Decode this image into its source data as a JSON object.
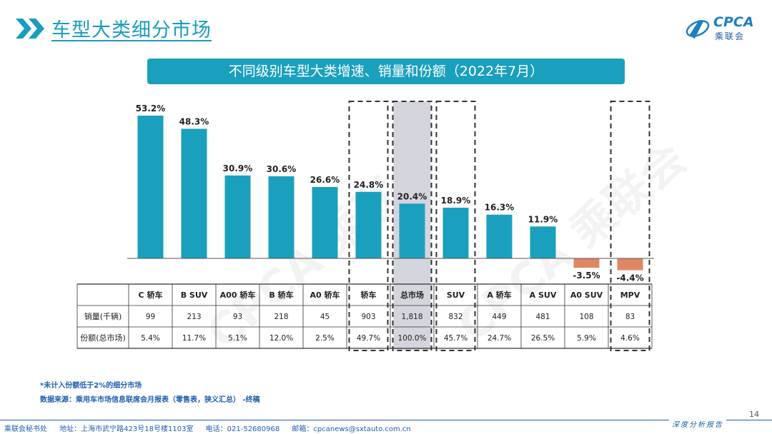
{
  "header": {
    "title": "车型大类细分市场",
    "logo_text": "CPCA",
    "logo_sub": "乘联会"
  },
  "banner": {
    "text": "不同级别车型大类增速、销量和份额（2022年7月）"
  },
  "watermark": "CPCA 乘联会",
  "chart_data": {
    "type": "bar",
    "title": "不同级别车型大类增速、销量和份额（2022年7月）",
    "categories": [
      "C 轿车",
      "B SUV",
      "A00 轿车",
      "B 轿车",
      "A0 轿车",
      "轿车",
      "总市场",
      "SUV",
      "A 轿车",
      "A SUV",
      "A0 SUV",
      "MPV"
    ],
    "values": [
      53.2,
      48.3,
      30.9,
      30.6,
      26.6,
      24.8,
      20.4,
      18.9,
      16.3,
      11.9,
      -3.5,
      -4.4
    ],
    "value_labels": [
      "53.2%",
      "48.3%",
      "30.9%",
      "30.6%",
      "26.6%",
      "24.8%",
      "20.4%",
      "18.9%",
      "16.3%",
      "11.9%",
      "-3.5%",
      "-4.4%"
    ],
    "unit": "%",
    "ylim": [
      -5,
      55
    ],
    "highlight_dashed": [
      "轿车",
      "总市场",
      "SUV",
      "MPV"
    ],
    "highlight_shaded": [
      "总市场"
    ],
    "colors": {
      "positive": "#1aa0bd",
      "negative": "#e08863",
      "dashed_border": "#333333",
      "shade": "#d5d5dd"
    },
    "table": {
      "row_labels": [
        "销量(千辆)",
        "份额(总市场)"
      ],
      "rows": [
        [
          "99",
          "213",
          "93",
          "218",
          "45",
          "903",
          "1,818",
          "832",
          "449",
          "481",
          "108",
          "83"
        ],
        [
          "5.4%",
          "11.7%",
          "5.1%",
          "12.0%",
          "2.5%",
          "49.7%",
          "100.0%",
          "45.7%",
          "24.7%",
          "26.5%",
          "5.9%",
          "4.6%"
        ]
      ]
    }
  },
  "notes": {
    "line1": "*未计入份额低于2%的细分市场",
    "line2": "数据来源：乘用车市场信息联席会月报表（零售表，狭义汇总） -终稿"
  },
  "footer": {
    "org": "乘联会秘书处",
    "address": "地址：上海市武宁路423号18号楼1103室",
    "phone": "电话：021-52680968",
    "email": "邮箱：cpcanews@sxtauto.com.cn",
    "report_tag": "深度分析报告",
    "page_number": "14"
  }
}
